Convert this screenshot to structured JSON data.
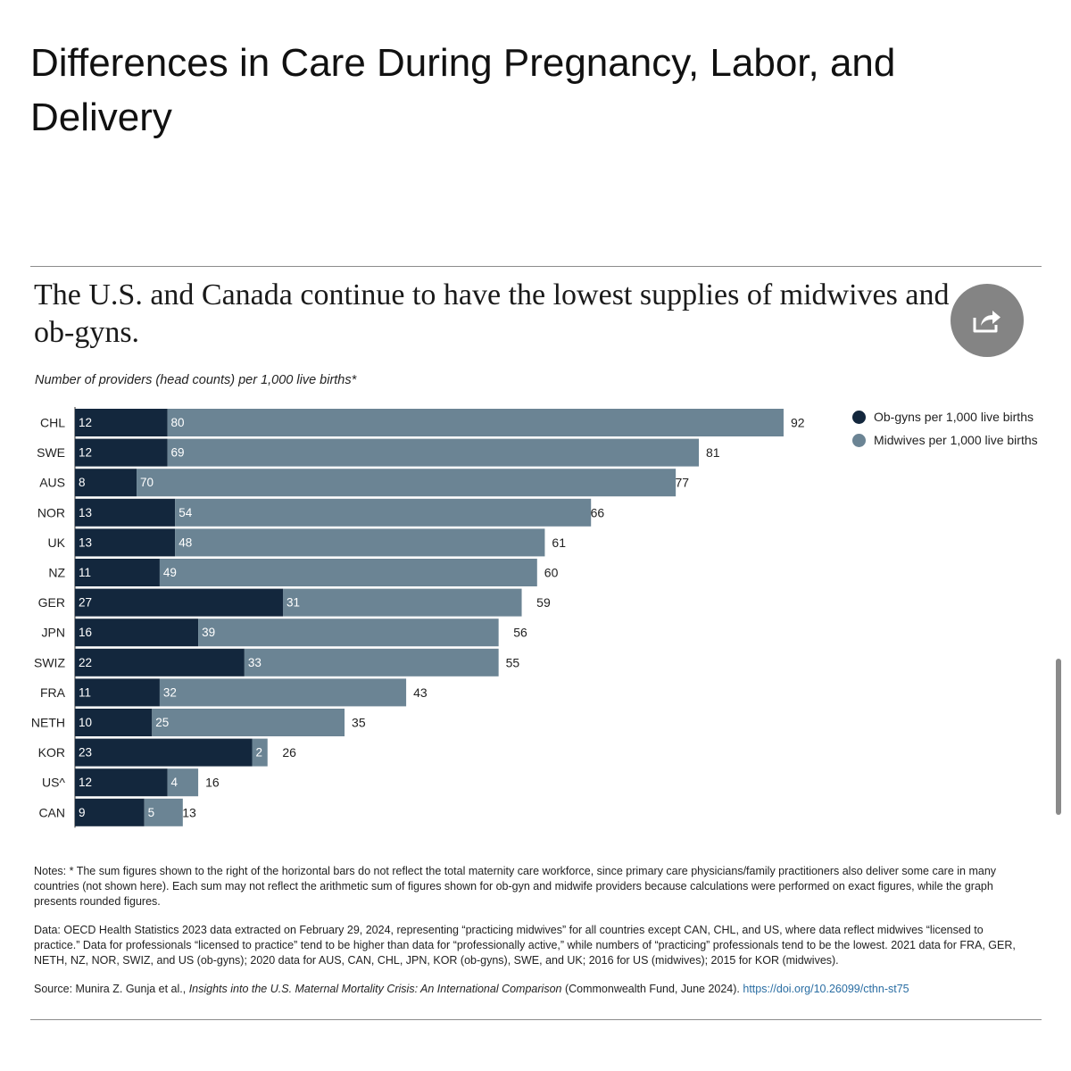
{
  "page_heading": "Differences in Care During Pregnancy, Labor, and Delivery",
  "share_icon": "share-arrow-icon",
  "chart_data": {
    "type": "bar",
    "orientation": "horizontal",
    "stacked": true,
    "title": "The U.S. and Canada continue to have the lowest supplies of midwives and ob-gyns.",
    "subtitle": "Number of providers (head counts) per 1,000 live births*",
    "categories": [
      "CHL",
      "SWE",
      "AUS",
      "NOR",
      "UK",
      "NZ",
      "GER",
      "JPN",
      "SWIZ",
      "FRA",
      "NETH",
      "KOR",
      "US^",
      "CAN"
    ],
    "series": [
      {
        "name": "Ob-gyns per 1,000 live births",
        "color": "#13273d",
        "values": [
          12,
          12,
          8,
          13,
          13,
          11,
          27,
          16,
          22,
          11,
          10,
          23,
          12,
          9
        ]
      },
      {
        "name": "Midwives per 1,000 live births",
        "color": "#6b8494",
        "values": [
          80,
          69,
          70,
          54,
          48,
          49,
          31,
          39,
          33,
          32,
          25,
          2,
          4,
          5
        ]
      }
    ],
    "totals": [
      92,
      81,
      77,
      66,
      61,
      60,
      59,
      56,
      55,
      43,
      35,
      26,
      16,
      13
    ],
    "xlim": [
      0,
      94
    ],
    "grid": false,
    "legend_position": "top-right"
  },
  "notes": {
    "notes_text": "Notes: * The sum figures shown to the right of the horizontal bars do not reflect the total maternity care workforce, since primary care physicians/family practitioners also deliver some care in many countries (not shown here). Each sum may not reflect the arithmetic sum of figures shown for ob-gyn and midwife providers because calculations were performed on exact figures, while the graph presents rounded figures.",
    "data_text": "Data: OECD Health Statistics 2023 data extracted on February 29, 2024, representing “practicing midwives” for all countries except CAN, CHL, and US, where data reflect midwives “licensed to practice.” Data for professionals “licensed to practice” tend to be higher than data for “professionally active,” while numbers of “practicing” professionals tend to be the lowest. 2021 data for FRA, GER, NETH, NZ, NOR, SWIZ, and US (ob-gyns); 2020 data for AUS, CAN, CHL, JPN, KOR (ob-gyns), SWE, and UK; 2016 for US (midwives); 2015 for KOR (midwives).",
    "source_prefix": "Source: Munira Z. Gunja et al., ",
    "source_title": "Insights into the U.S. Maternal Mortality Crisis: An International Comparison",
    "source_suffix": " (Commonwealth Fund, June 2024). ",
    "source_link": "https://doi.org/10.26099/cthn-st75"
  }
}
